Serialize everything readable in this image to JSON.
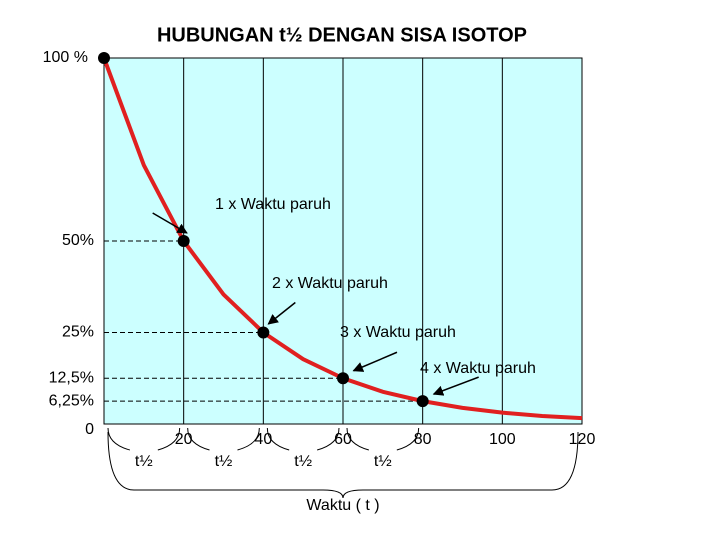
{
  "chart_data": {
    "type": "line",
    "title": "HUBUNGAN t½ DENGAN SISA ISOTOP",
    "xlim": [
      0,
      120
    ],
    "xticks": [
      20,
      40,
      60,
      80,
      100,
      120
    ],
    "ylim": [
      0,
      100
    ],
    "yticks": [
      {
        "value": 100,
        "label": "100 %"
      },
      {
        "value": 50,
        "label": "50%"
      },
      {
        "value": 25,
        "label": "25%"
      },
      {
        "value": 12.5,
        "label": "12,5%"
      },
      {
        "value": 6.25,
        "label": "6,25%"
      },
      0
    ],
    "background": "#ccffff",
    "grid": true,
    "series": [
      {
        "color": "#e02020",
        "line": true,
        "x": [
          0,
          10,
          20,
          30,
          40,
          50,
          60,
          70,
          80,
          90,
          100,
          110,
          120
        ],
        "values": [
          100,
          70.7,
          50,
          35.4,
          25,
          17.7,
          12.5,
          8.8,
          6.25,
          4.4,
          3.1,
          2.2,
          1.6
        ]
      },
      {
        "color": "#000000",
        "marker": true,
        "x": [
          0,
          20,
          40,
          60,
          80
        ],
        "values": [
          100,
          50,
          25,
          12.5,
          6.25
        ]
      }
    ],
    "annotations": [
      {
        "text": "1 x  Waktu paruh",
        "x": 20,
        "y": 50
      },
      {
        "text": "2 x  Waktu paruh",
        "x": 40,
        "y": 25
      },
      {
        "text": "3 x  Waktu paruh",
        "x": 60,
        "y": 12.5
      },
      {
        "text": "4 x  Waktu paruh",
        "x": 80,
        "y": 6.25
      }
    ],
    "interval_labels": [
      "t½",
      "t½",
      "t½",
      "t½"
    ],
    "xlabel": "Waktu ( t )"
  }
}
